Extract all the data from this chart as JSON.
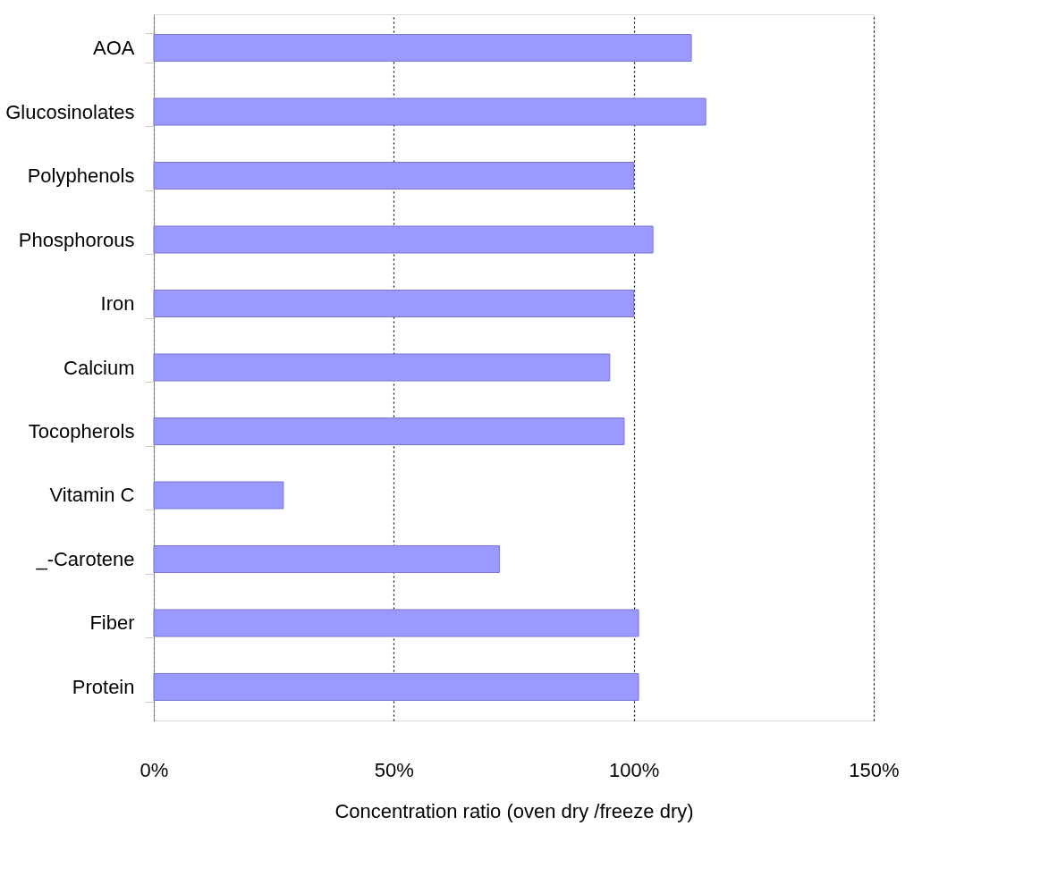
{
  "chart_data": {
    "type": "bar",
    "orientation": "horizontal",
    "xlabel": "Concentration ratio (oven dry /freeze dry)",
    "categories": [
      "AOA",
      "Glucosinolates",
      "Polyphenols",
      "Phosphorous",
      "Iron",
      "Calcium",
      "Tocopherols",
      "Vitamin C",
      "_-Carotene",
      "Fiber",
      "Protein"
    ],
    "values": [
      112,
      115,
      100,
      104,
      100,
      95,
      98,
      27,
      72,
      101,
      101
    ],
    "color": "#9999ff",
    "xlim": [
      0,
      150
    ],
    "xticks": [
      {
        "value": 0,
        "label": "0%"
      },
      {
        "value": 50,
        "label": "50%"
      },
      {
        "value": 100,
        "label": "100%"
      },
      {
        "value": 150,
        "label": "150%"
      }
    ],
    "grid": "x"
  }
}
